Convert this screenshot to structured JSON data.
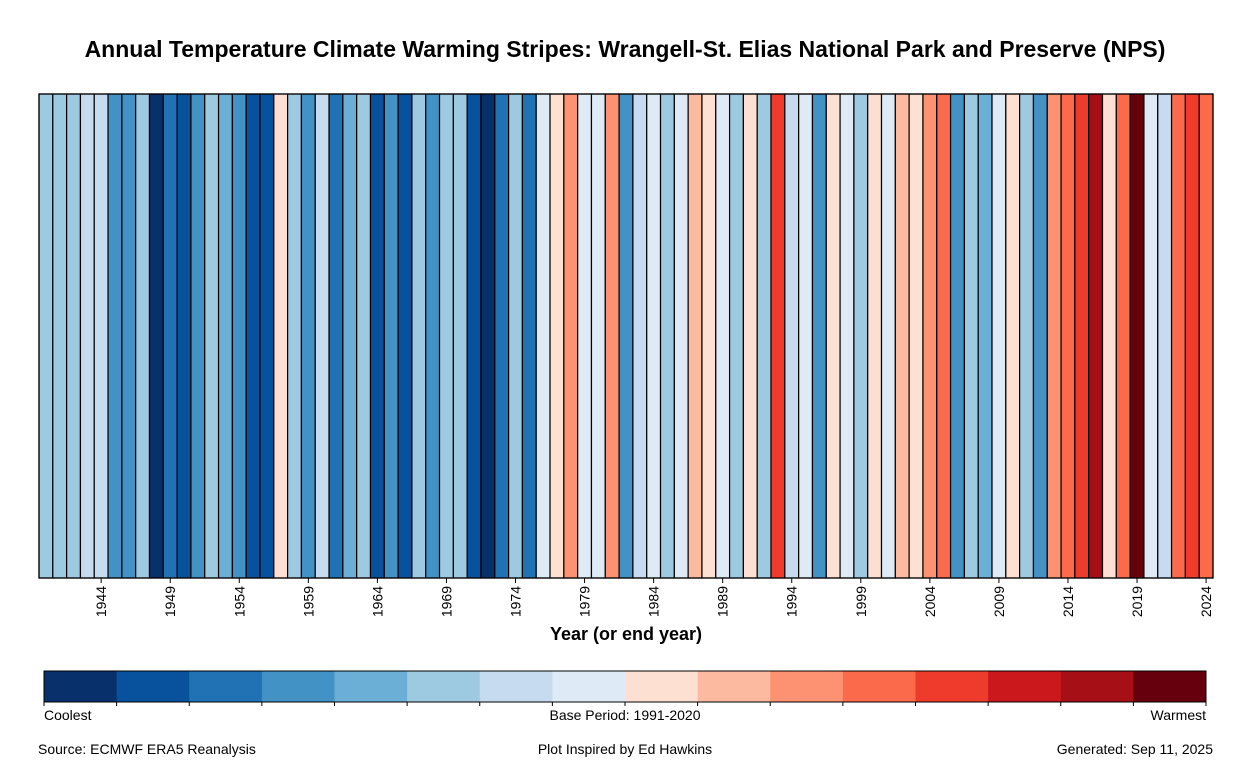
{
  "chart_data": {
    "type": "heatmap",
    "title": "Annual Temperature Climate Warming Stripes: Wrangell-St. Elias National Park and Preserve (NPS)",
    "xlabel": "Year (or end year)",
    "ylabel": "",
    "x_start": 1940,
    "x_end": 2024,
    "xticks": [
      1944,
      1949,
      1954,
      1959,
      1964,
      1969,
      1974,
      1979,
      1984,
      1989,
      1994,
      1999,
      2004,
      2009,
      2014,
      2019,
      2024
    ],
    "color_levels": [
      "#08306b",
      "#08519c",
      "#2171b5",
      "#4292c6",
      "#6baed6",
      "#9ecae1",
      "#c6dbef",
      "#deebf7",
      "#fee0d2",
      "#fcbba1",
      "#fc9272",
      "#fb6a4a",
      "#ef3b2c",
      "#cb181d",
      "#a50f15",
      "#67000d"
    ],
    "level_note": "Each year's value is its color class index (1 = coolest, 16 = warmest)",
    "years": [
      1940,
      1941,
      1942,
      1943,
      1944,
      1945,
      1946,
      1947,
      1948,
      1949,
      1950,
      1951,
      1952,
      1953,
      1954,
      1955,
      1956,
      1957,
      1958,
      1959,
      1960,
      1961,
      1962,
      1963,
      1964,
      1965,
      1966,
      1967,
      1968,
      1969,
      1970,
      1971,
      1972,
      1973,
      1974,
      1975,
      1976,
      1977,
      1978,
      1979,
      1980,
      1981,
      1982,
      1983,
      1984,
      1985,
      1986,
      1987,
      1988,
      1989,
      1990,
      1991,
      1992,
      1993,
      1994,
      1995,
      1996,
      1997,
      1998,
      1999,
      2000,
      2001,
      2002,
      2003,
      2004,
      2005,
      2006,
      2007,
      2008,
      2009,
      2010,
      2011,
      2012,
      2013,
      2014,
      2015,
      2016,
      2017,
      2018,
      2019,
      2020,
      2021,
      2022,
      2023,
      2024
    ],
    "values": [
      6,
      6,
      6,
      7,
      7,
      4,
      4,
      6,
      1,
      3,
      2,
      4,
      6,
      5,
      4,
      2,
      2,
      9,
      6,
      4,
      7,
      3,
      5,
      6,
      2,
      4,
      2,
      6,
      4,
      6,
      6,
      2,
      1,
      3,
      6,
      3,
      8,
      9,
      11,
      8,
      8,
      11,
      4,
      7,
      8,
      6,
      8,
      10,
      9,
      8,
      6,
      9,
      6,
      13,
      7,
      8,
      4,
      9,
      8,
      6,
      9,
      8,
      10,
      9,
      11,
      12,
      4,
      6,
      5,
      8,
      9,
      6,
      4,
      11,
      12,
      13,
      15,
      9,
      12,
      16,
      8,
      7,
      12,
      13,
      12
    ],
    "colorbar": {
      "left_label": "Coolest",
      "center_label": "Base Period: 1991-2020",
      "right_label": "Warmest"
    }
  },
  "footer": {
    "source": "Source: ECMWF ERA5 Reanalysis",
    "inspired": "Plot Inspired by Ed Hawkins",
    "generated": "Generated: Sep 11, 2025"
  }
}
